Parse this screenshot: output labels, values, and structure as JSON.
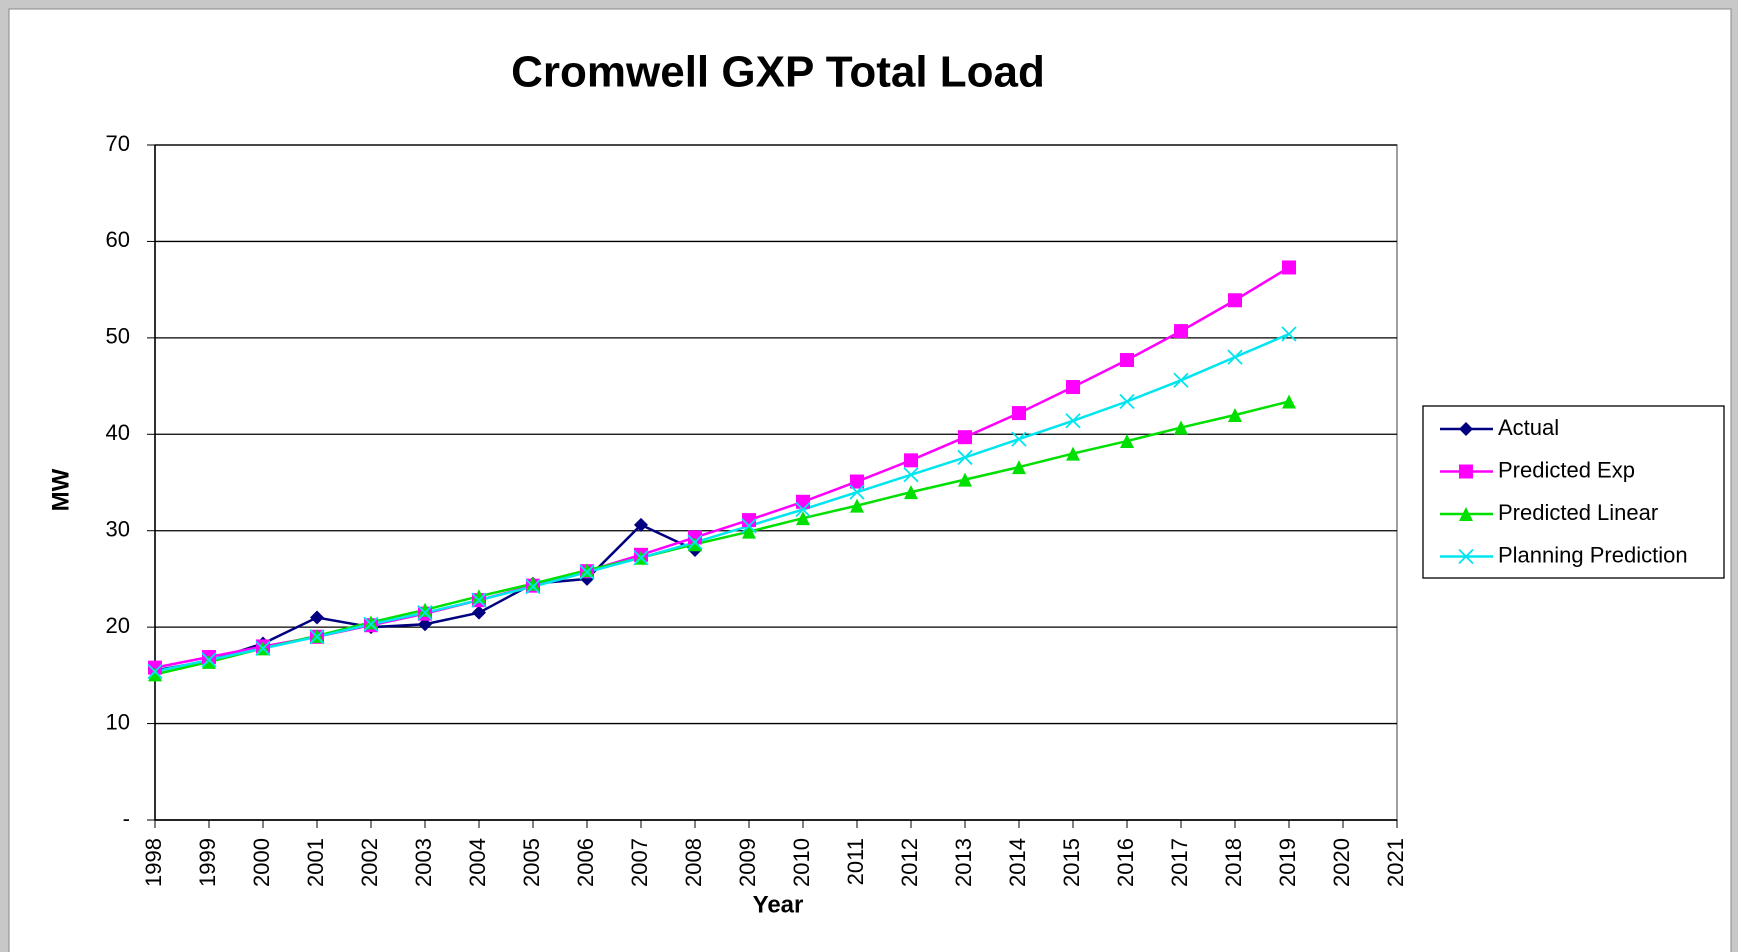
{
  "chart_data": {
    "type": "line",
    "title": "Cromwell GXP Total Load",
    "x_label": "Year",
    "y_label": "MW",
    "categories": [
      "1998",
      "1999",
      "2000",
      "2001",
      "2002",
      "2003",
      "2004",
      "2005",
      "2006",
      "2007",
      "2008",
      "2009",
      "2010",
      "2011",
      "2012",
      "2013",
      "2014",
      "2015",
      "2016",
      "2017",
      "2018",
      "2019",
      "2020",
      "2021"
    ],
    "ylim": [
      0,
      70
    ],
    "yticks": [
      {
        "value": 0,
        "label": "-"
      },
      10,
      20,
      30,
      40,
      50,
      60,
      70
    ],
    "grid": true,
    "legend": "right",
    "series": [
      {
        "name": "Actual",
        "color": "#000080",
        "marker": "diamond",
        "values": [
          15.5,
          16.5,
          18.3,
          21.0,
          20.0,
          20.3,
          21.5,
          24.5,
          25.0,
          30.6,
          28.0,
          null,
          null,
          null,
          null,
          null,
          null,
          null,
          null,
          null,
          null,
          null,
          null,
          null
        ]
      },
      {
        "name": "Predicted Exp",
        "color": "#ff00ff",
        "marker": "square",
        "values": [
          15.8,
          16.9,
          18.0,
          19.0,
          20.2,
          21.4,
          22.8,
          24.3,
          25.8,
          27.5,
          29.3,
          31.1,
          33.0,
          35.1,
          37.3,
          39.7,
          42.2,
          44.9,
          47.7,
          50.7,
          53.9,
          57.3,
          null,
          null
        ]
      },
      {
        "name": "Predicted Linear",
        "color": "#00e000",
        "marker": "triangle",
        "values": [
          15.1,
          16.4,
          17.8,
          19.1,
          20.5,
          21.8,
          23.2,
          24.5,
          25.9,
          27.2,
          28.6,
          29.9,
          31.3,
          32.6,
          34.0,
          35.3,
          36.6,
          38.0,
          39.3,
          40.7,
          42.0,
          43.4,
          null,
          null
        ]
      },
      {
        "name": "Planning Prediction",
        "color": "#00e5ee",
        "marker": "x",
        "values": [
          15.4,
          16.6,
          17.8,
          19.0,
          20.3,
          21.5,
          22.8,
          24.2,
          25.7,
          27.2,
          28.8,
          30.5,
          32.2,
          34.0,
          35.8,
          37.6,
          39.5,
          41.4,
          43.4,
          45.6,
          48.0,
          50.4,
          null,
          null
        ]
      }
    ]
  }
}
